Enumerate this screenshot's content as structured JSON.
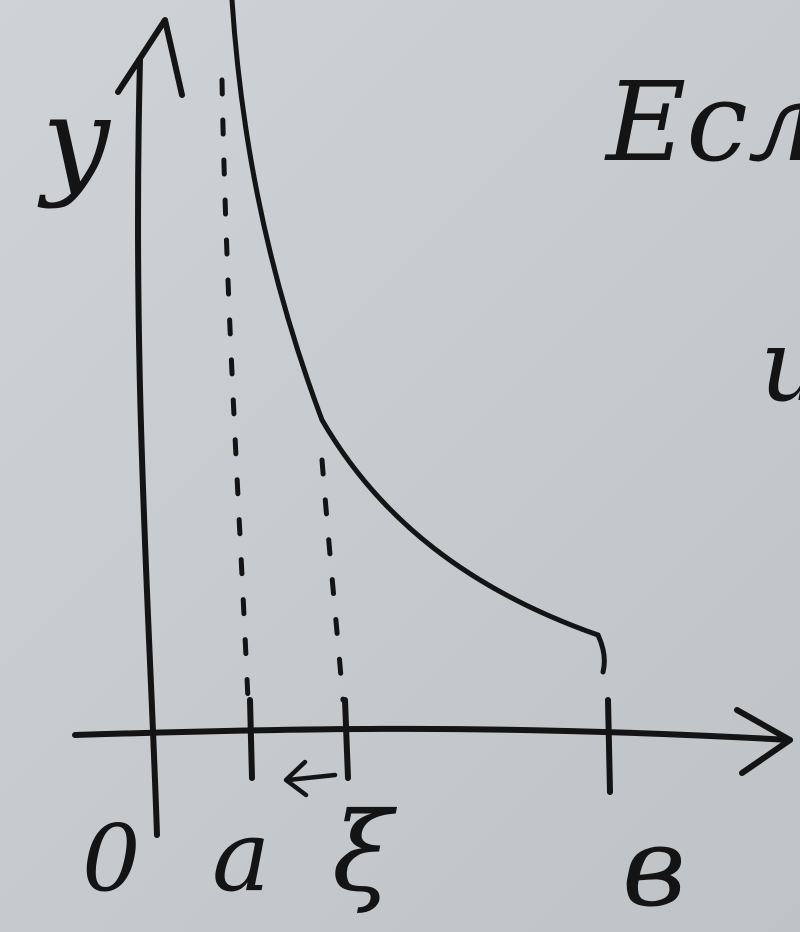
{
  "diagram": {
    "labels": {
      "y_axis": "y",
      "origin": "0",
      "a": "a",
      "xi": "ξ",
      "b": "в"
    },
    "side_text": {
      "top": "Есл",
      "middle": "и"
    },
    "colors": {
      "board": "#c9cdd0",
      "ink": "#141414"
    }
  }
}
